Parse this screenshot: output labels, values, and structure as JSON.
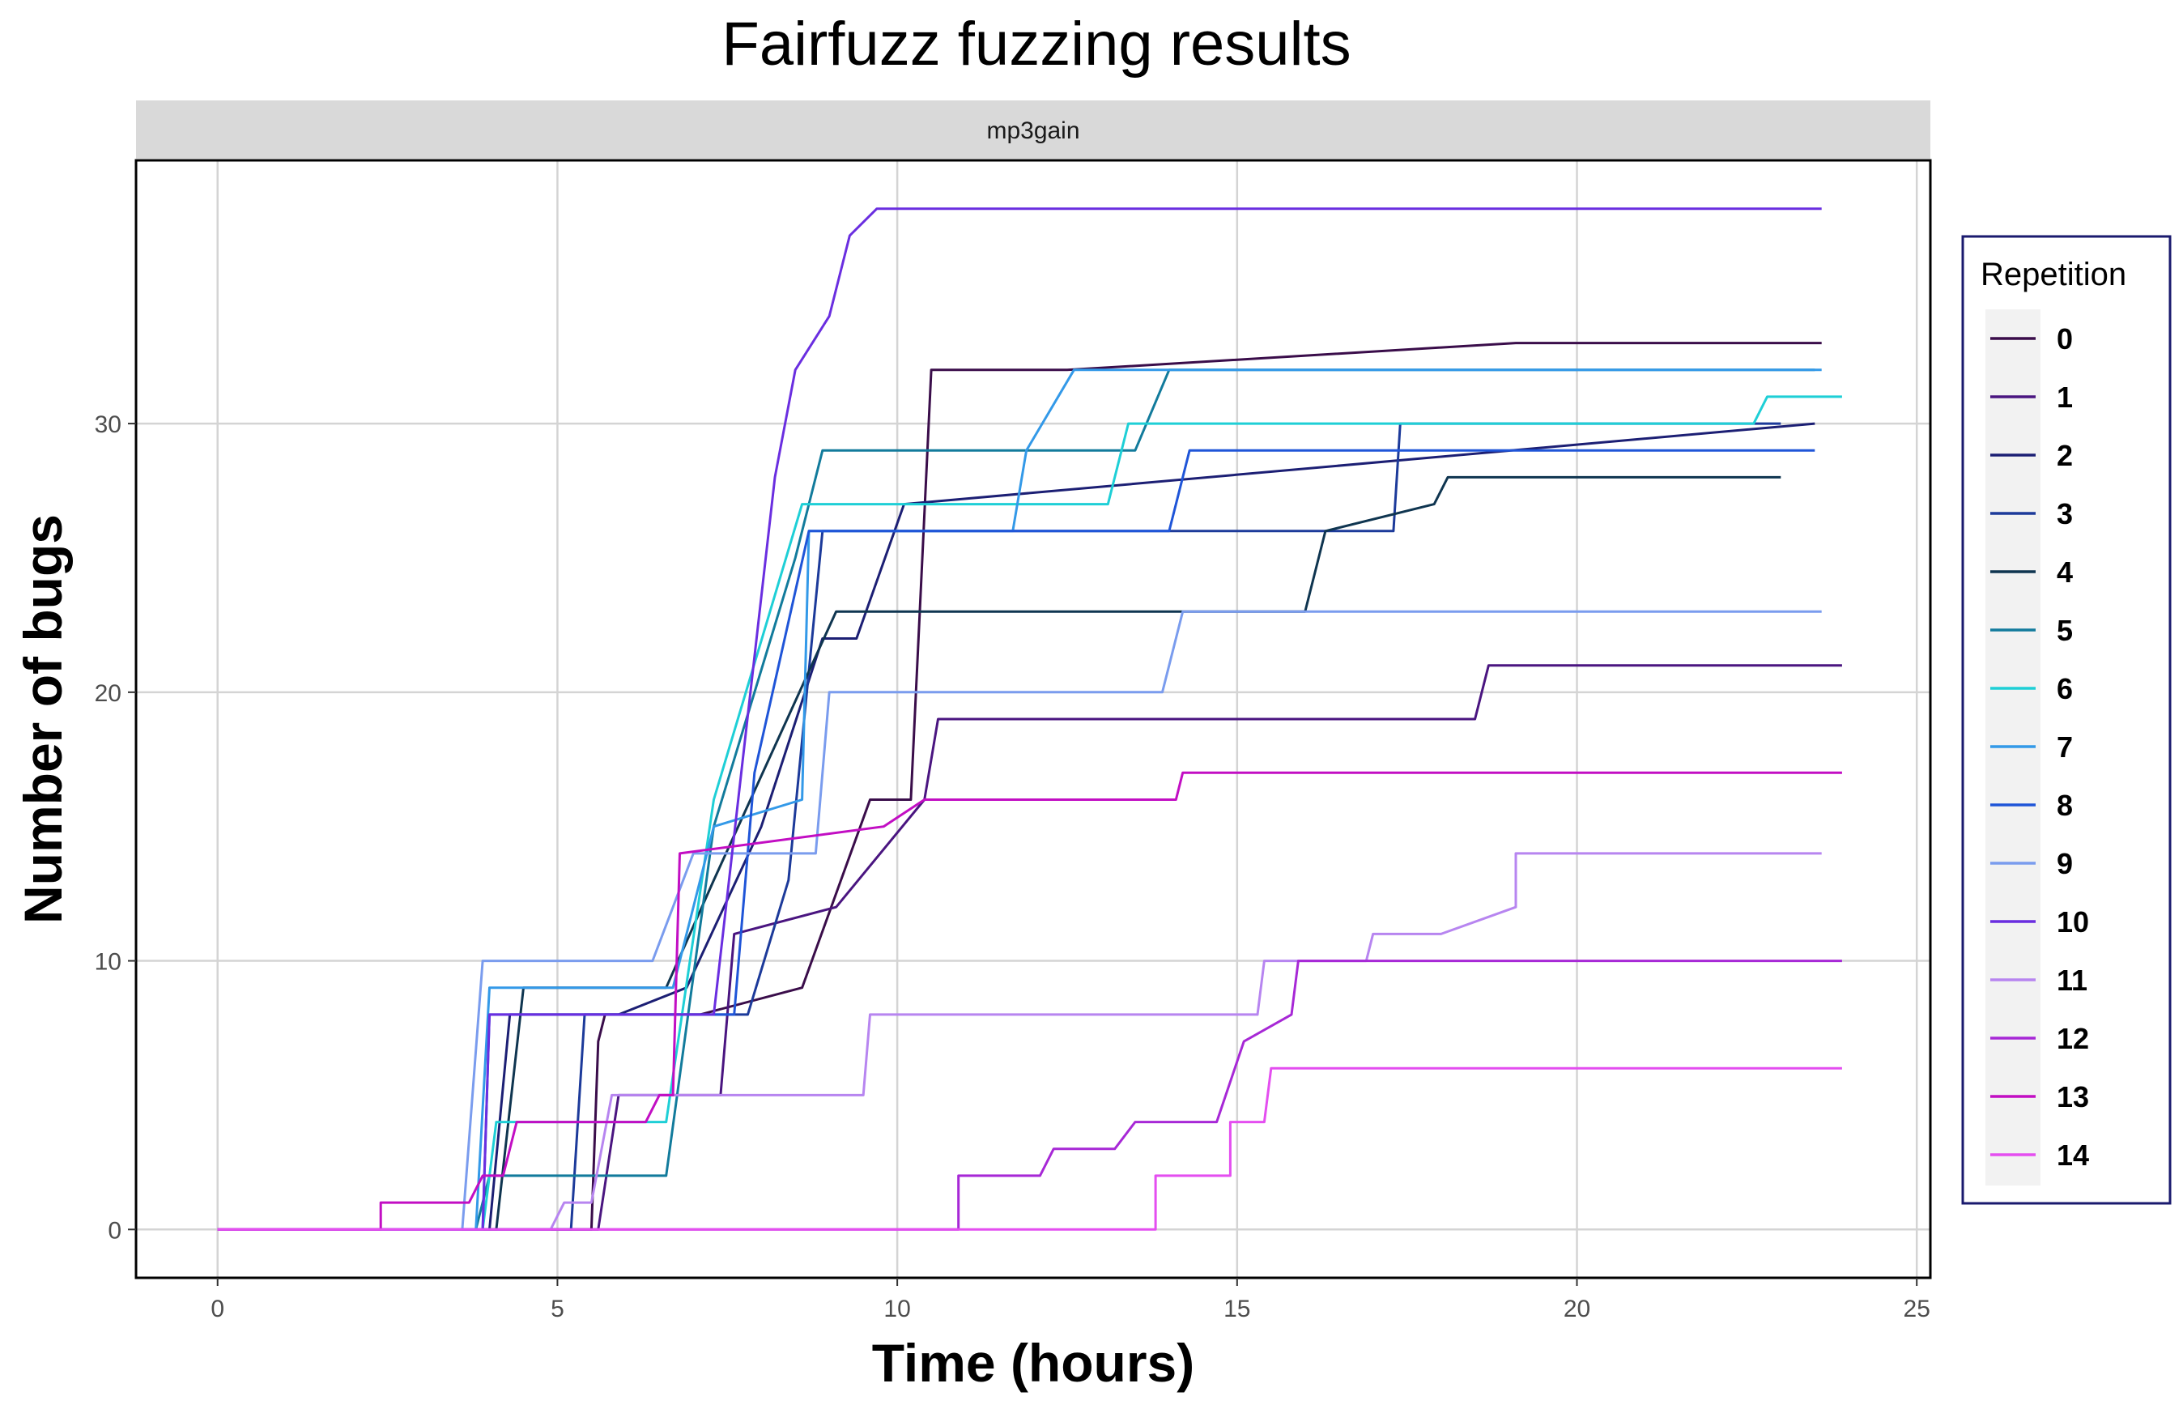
{
  "chart_data": {
    "type": "line",
    "step": true,
    "title": "Fairfuzz fuzzing results",
    "facet_label": "mp3gain",
    "xlabel": "Time (hours)",
    "ylabel": "Number of bugs",
    "xlim": [
      -1.2,
      25.2
    ],
    "ylim": [
      -1.8,
      39.8
    ],
    "xticks": [
      0,
      5,
      10,
      15,
      20,
      25
    ],
    "yticks": [
      0,
      10,
      20,
      30
    ],
    "grid": true,
    "legend": {
      "title": "Repetition",
      "position": "right"
    },
    "series": [
      {
        "name": "0",
        "color": "#3a0d4a",
        "points": [
          [
            0,
            0
          ],
          [
            5.5,
            0
          ],
          [
            5.6,
            7
          ],
          [
            5.7,
            8
          ],
          [
            7.1,
            8
          ],
          [
            8.6,
            9
          ],
          [
            9.6,
            16
          ],
          [
            10.2,
            16
          ],
          [
            10.5,
            32
          ],
          [
            12.5,
            32
          ],
          [
            19.1,
            33
          ],
          [
            23.6,
            33
          ]
        ]
      },
      {
        "name": "1",
        "color": "#4a1580",
        "points": [
          [
            0,
            0
          ],
          [
            5.6,
            0
          ],
          [
            5.9,
            5
          ],
          [
            7.4,
            5
          ],
          [
            7.6,
            11
          ],
          [
            9.1,
            12
          ],
          [
            10.4,
            16
          ],
          [
            10.6,
            19
          ],
          [
            18.5,
            19
          ],
          [
            18.7,
            21
          ],
          [
            23.9,
            21
          ]
        ]
      },
      {
        "name": "2",
        "color": "#1c1f74",
        "points": [
          [
            0,
            0
          ],
          [
            4.0,
            0
          ],
          [
            4.3,
            8
          ],
          [
            5.9,
            8
          ],
          [
            6.9,
            9
          ],
          [
            8.0,
            15
          ],
          [
            8.9,
            22
          ],
          [
            9.4,
            22
          ],
          [
            10.1,
            27
          ],
          [
            23.5,
            30
          ]
        ]
      },
      {
        "name": "3",
        "color": "#1c3a9a",
        "points": [
          [
            0,
            0
          ],
          [
            5.2,
            0
          ],
          [
            5.4,
            8
          ],
          [
            7.8,
            8
          ],
          [
            8.4,
            13
          ],
          [
            8.9,
            26
          ],
          [
            17.3,
            26
          ],
          [
            17.4,
            30
          ],
          [
            23.0,
            30
          ]
        ]
      },
      {
        "name": "4",
        "color": "#0f3550",
        "points": [
          [
            0,
            0
          ],
          [
            4.1,
            0
          ],
          [
            4.5,
            9
          ],
          [
            6.6,
            9
          ],
          [
            7.3,
            13
          ],
          [
            9.1,
            23
          ],
          [
            13.8,
            23
          ],
          [
            16.0,
            23
          ],
          [
            16.3,
            26
          ],
          [
            17.9,
            27
          ],
          [
            18.1,
            28
          ],
          [
            23.0,
            28
          ]
        ]
      },
      {
        "name": "5",
        "color": "#127b9c",
        "points": [
          [
            0,
            0
          ],
          [
            3.8,
            0
          ],
          [
            4.0,
            2
          ],
          [
            6.6,
            2
          ],
          [
            7.3,
            15
          ],
          [
            8.5,
            25
          ],
          [
            8.9,
            29
          ],
          [
            13.5,
            29
          ],
          [
            14.0,
            32
          ],
          [
            23.5,
            32
          ]
        ]
      },
      {
        "name": "6",
        "color": "#1ecfd6",
        "points": [
          [
            0,
            0
          ],
          [
            3.9,
            0
          ],
          [
            4.1,
            4
          ],
          [
            6.6,
            4
          ],
          [
            7.3,
            16
          ],
          [
            8.6,
            27
          ],
          [
            13.1,
            27
          ],
          [
            13.4,
            30
          ],
          [
            22.6,
            30
          ],
          [
            22.8,
            31
          ],
          [
            23.9,
            31
          ]
        ]
      },
      {
        "name": "7",
        "color": "#3399e8",
        "points": [
          [
            0,
            0
          ],
          [
            3.8,
            0
          ],
          [
            4.0,
            9
          ],
          [
            6.7,
            9
          ],
          [
            7.3,
            15
          ],
          [
            8.6,
            16
          ],
          [
            8.7,
            26
          ],
          [
            11.7,
            26
          ],
          [
            11.9,
            29
          ],
          [
            12.6,
            32
          ],
          [
            23.6,
            32
          ]
        ]
      },
      {
        "name": "8",
        "color": "#1f55d8",
        "points": [
          [
            0,
            0
          ],
          [
            3.9,
            0
          ],
          [
            4.0,
            8
          ],
          [
            7.6,
            8
          ],
          [
            7.9,
            17
          ],
          [
            8.7,
            26
          ],
          [
            14.0,
            26
          ],
          [
            14.3,
            29
          ],
          [
            23.5,
            29
          ]
        ]
      },
      {
        "name": "9",
        "color": "#7a9cee",
        "points": [
          [
            0,
            0
          ],
          [
            3.6,
            0
          ],
          [
            3.9,
            10
          ],
          [
            6.4,
            10
          ],
          [
            7.0,
            14
          ],
          [
            8.8,
            14
          ],
          [
            9.0,
            20
          ],
          [
            13.9,
            20
          ],
          [
            14.2,
            23
          ],
          [
            23.6,
            23
          ]
        ]
      },
      {
        "name": "10",
        "color": "#6a2ee0",
        "points": [
          [
            0,
            0
          ],
          [
            3.9,
            0
          ],
          [
            4.0,
            8
          ],
          [
            7.3,
            8
          ],
          [
            8.2,
            28
          ],
          [
            8.5,
            32
          ],
          [
            9.0,
            34
          ],
          [
            9.3,
            37
          ],
          [
            9.7,
            38
          ],
          [
            23.6,
            38
          ]
        ]
      },
      {
        "name": "11",
        "color": "#b785f0",
        "points": [
          [
            0,
            0
          ],
          [
            4.9,
            0
          ],
          [
            5.1,
            1
          ],
          [
            5.5,
            1
          ],
          [
            5.8,
            5
          ],
          [
            9.5,
            5
          ],
          [
            9.6,
            8
          ],
          [
            15.3,
            8
          ],
          [
            15.4,
            10
          ],
          [
            16.9,
            10
          ],
          [
            17.0,
            11
          ],
          [
            18.0,
            11
          ],
          [
            19.1,
            12
          ],
          [
            19.1,
            14
          ],
          [
            23.6,
            14
          ]
        ]
      },
      {
        "name": "12",
        "color": "#a728d6",
        "points": [
          [
            0,
            0
          ],
          [
            10.9,
            0
          ],
          [
            10.9,
            2
          ],
          [
            12.1,
            2
          ],
          [
            12.3,
            3
          ],
          [
            13.2,
            3
          ],
          [
            13.5,
            4
          ],
          [
            14.7,
            4
          ],
          [
            15.1,
            7
          ],
          [
            15.8,
            8
          ],
          [
            15.9,
            10
          ],
          [
            23.9,
            10
          ]
        ]
      },
      {
        "name": "13",
        "color": "#c20ec3",
        "points": [
          [
            0,
            0
          ],
          [
            2.4,
            0
          ],
          [
            2.4,
            1
          ],
          [
            3.7,
            1
          ],
          [
            3.9,
            2
          ],
          [
            4.2,
            2
          ],
          [
            4.4,
            4
          ],
          [
            6.3,
            4
          ],
          [
            6.5,
            5
          ],
          [
            6.7,
            5
          ],
          [
            6.8,
            14
          ],
          [
            9.8,
            15
          ],
          [
            10.4,
            16
          ],
          [
            14.1,
            16
          ],
          [
            14.2,
            17
          ],
          [
            23.9,
            17
          ]
        ]
      },
      {
        "name": "14",
        "color": "#e44ef0",
        "points": [
          [
            0,
            0
          ],
          [
            13.8,
            0
          ],
          [
            13.8,
            2
          ],
          [
            14.9,
            2
          ],
          [
            14.9,
            4
          ],
          [
            15.4,
            4
          ],
          [
            15.5,
            6
          ],
          [
            23.9,
            6
          ]
        ]
      }
    ]
  }
}
